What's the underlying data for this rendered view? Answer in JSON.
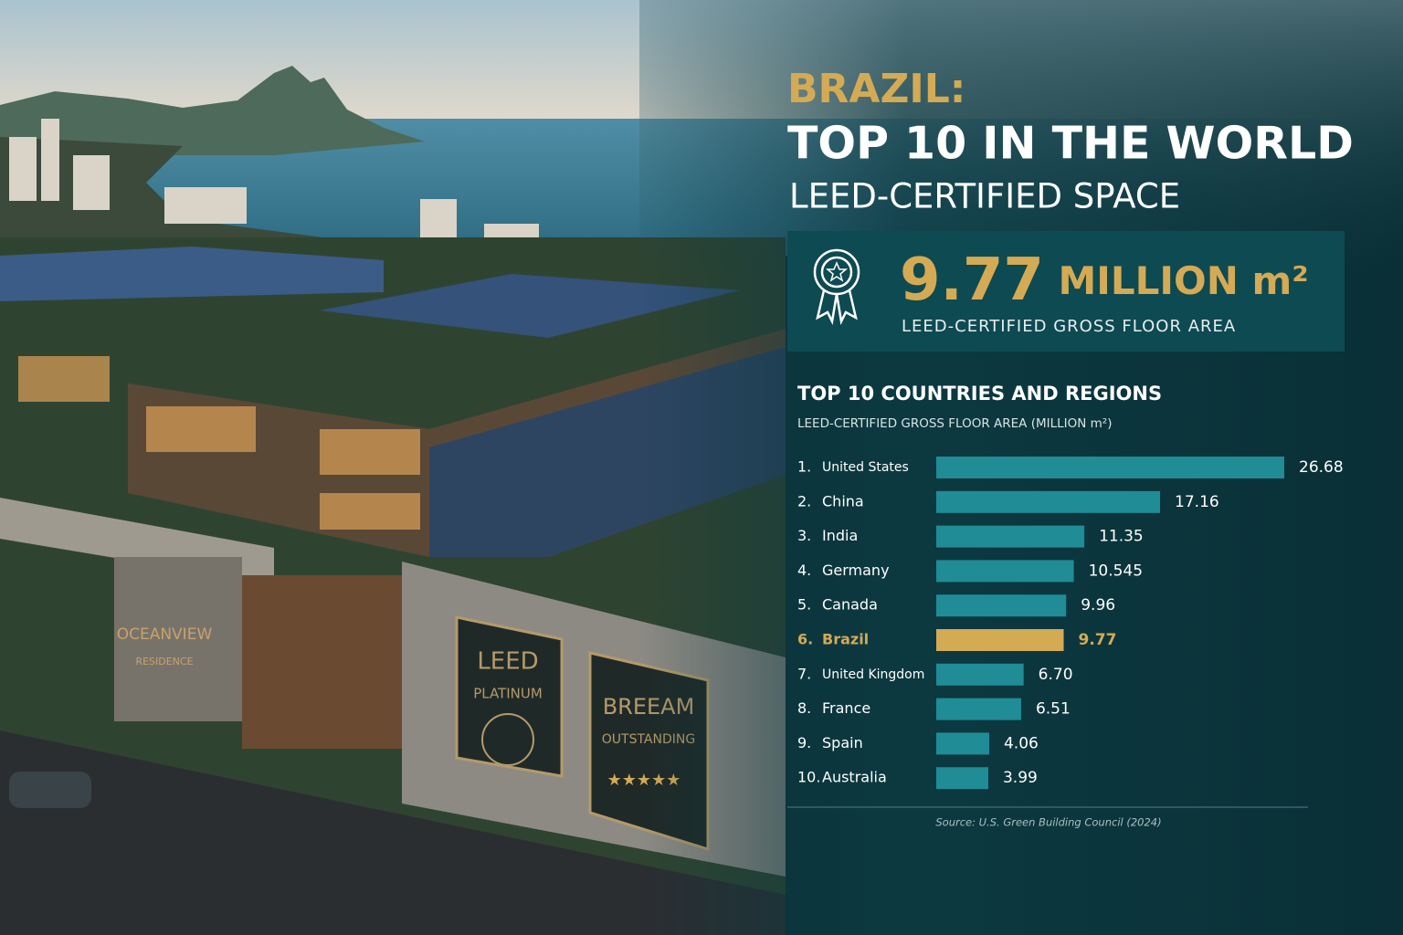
{
  "header": {
    "kicker": "BRAZIL:",
    "title": "TOP 10 IN THE WORLD",
    "subtitle": "LEED-CERTIFIED SPACE"
  },
  "stat": {
    "value": "9.77",
    "unit": "MILLION m²",
    "label": "LEED-CERTIFIED GROSS FLOOR AREA"
  },
  "photo": {
    "residence": [
      "OCEANVIEW",
      "RESIDENCE"
    ],
    "leed": [
      "LEED",
      "PLATINUM"
    ],
    "breeam": [
      "BREEAM",
      "OUTSTANDING"
    ]
  },
  "chart_data": {
    "type": "bar",
    "orientation": "horizontal",
    "title": "TOP 10 COUNTRIES  AND REGIONS",
    "subtitle": "LEED-CERTIFIED GROSS FLOOR AREA (MILLION m²)",
    "ranks": [
      "1.",
      "2.",
      "3.",
      "4.",
      "5.",
      "6.",
      "7.",
      "8.",
      "9.",
      "10."
    ],
    "categories": [
      "United States",
      "China",
      "India",
      "Germany",
      "Canada",
      "Brazil",
      "United Kingdom",
      "France",
      "Spain",
      "Australia"
    ],
    "values": [
      26.68,
      17.16,
      11.35,
      10.545,
      9.96,
      9.77,
      6.7,
      6.51,
      4.06,
      3.99
    ],
    "value_labels": [
      "26.68",
      "17.16",
      "11.35",
      "10.545",
      "9.96",
      "9.77",
      "6.70",
      "6.51",
      "4.06",
      "3.99"
    ],
    "colors": [
      "#1f8c96",
      "#1f8c96",
      "#1f8c96",
      "#1f8c96",
      "#1f8c96",
      "#d4aa55",
      "#1f8c96",
      "#1f8c96",
      "#1f8c96",
      "#1f8c96"
    ],
    "source": "Source: U.S. Green Building Council (2024)"
  }
}
